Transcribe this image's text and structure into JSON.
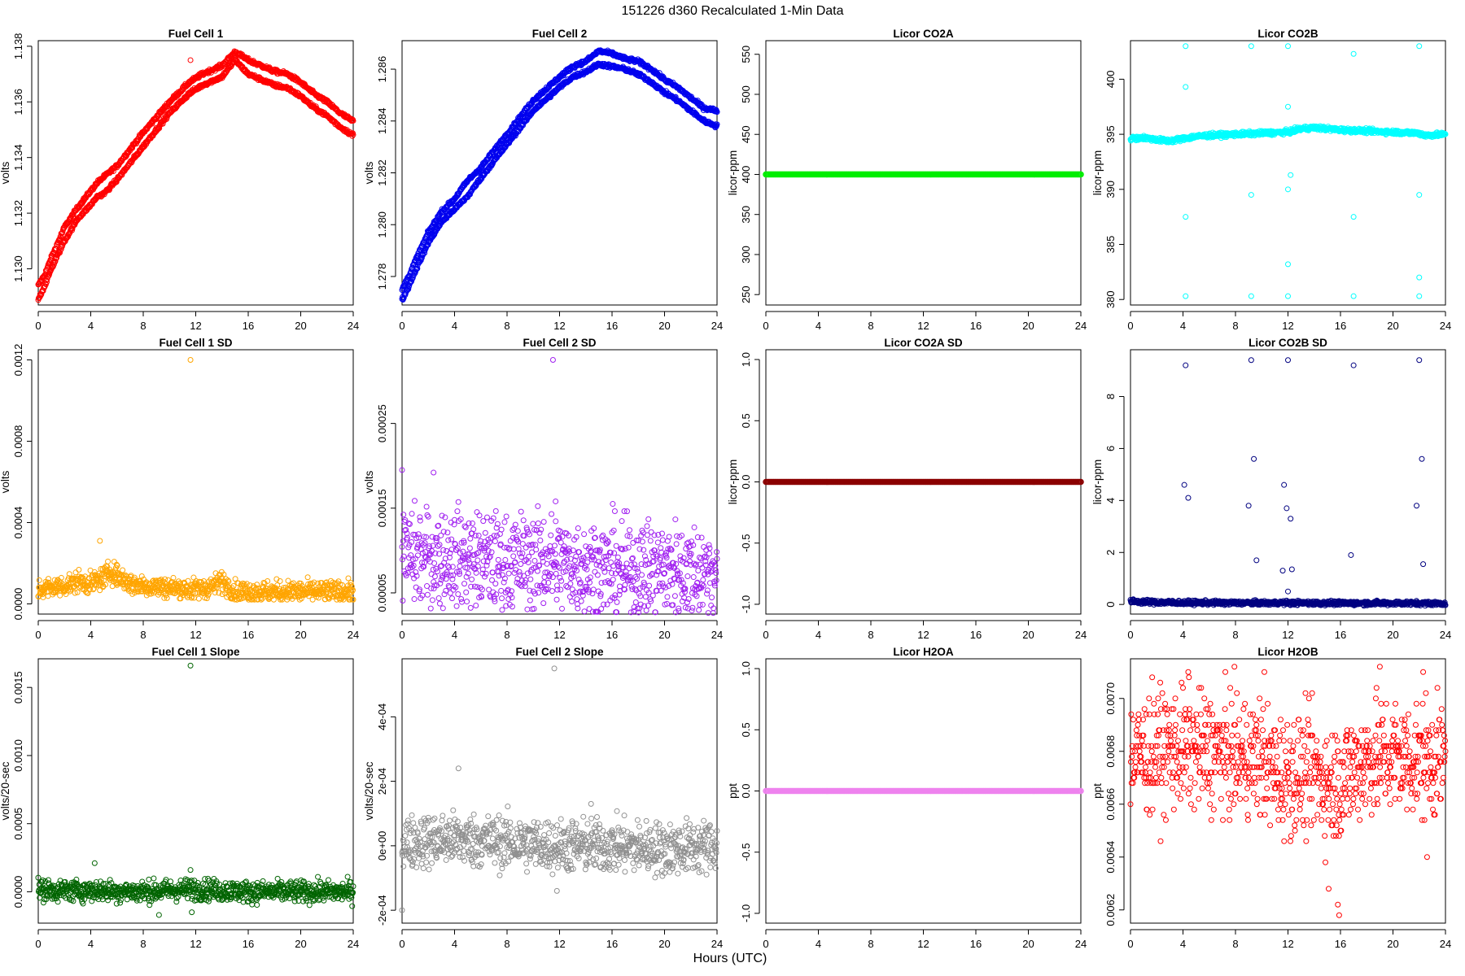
{
  "figure": {
    "title": "151226   d360   Recalculated 1-Min Data",
    "xlabel": "Hours (UTC)"
  },
  "chart_data": [
    {
      "type": "scatter",
      "title": "Fuel Cell 1",
      "ylabel": "volts",
      "color": "#ff0000",
      "xlim": [
        0,
        24
      ],
      "ylim": [
        1.1287,
        1.1382
      ],
      "xticks": [
        0,
        4,
        8,
        12,
        16,
        20,
        24
      ],
      "xtick_labels": [
        "0",
        "4",
        "8",
        "12",
        "16",
        "20",
        "24"
      ],
      "yticks": [
        1.13,
        1.132,
        1.134,
        1.136,
        1.138
      ],
      "ytick_labels": [
        "1.130",
        "1.132",
        "1.134",
        "1.136",
        "1.138"
      ],
      "series": [
        {
          "x": [
            0,
            0.5,
            1,
            2,
            3,
            4,
            4.5,
            5,
            6,
            8,
            10,
            11.5,
            12.5,
            14,
            15,
            16,
            17,
            18,
            19,
            20,
            21,
            22,
            23,
            24
          ],
          "y": [
            1.1294,
            1.1298,
            1.1304,
            1.1315,
            1.1322,
            1.1328,
            1.1331,
            1.1333,
            1.1337,
            1.1349,
            1.136,
            1.1367,
            1.137,
            1.1373,
            1.1378,
            1.1375,
            1.1373,
            1.1371,
            1.137,
            1.1367,
            1.1363,
            1.136,
            1.1356,
            1.1353
          ]
        },
        {
          "x": [
            0,
            0.5,
            1,
            2,
            3,
            4,
            4.5,
            5,
            6,
            8,
            10,
            11.5,
            12.5,
            14,
            15,
            16,
            17,
            18,
            19,
            20,
            21,
            22,
            23,
            24
          ],
          "y": [
            1.1289,
            1.1294,
            1.13,
            1.131,
            1.1318,
            1.1323,
            1.1326,
            1.1327,
            1.1332,
            1.1344,
            1.1356,
            1.1363,
            1.1366,
            1.1369,
            1.1375,
            1.137,
            1.1368,
            1.1366,
            1.1365,
            1.1362,
            1.1358,
            1.1355,
            1.1351,
            1.1348
          ]
        },
        {
          "x": [
            11.6
          ],
          "y": [
            1.1375
          ]
        }
      ]
    },
    {
      "type": "scatter",
      "title": "Fuel Cell 2",
      "ylabel": "volts",
      "color": "#0000ee",
      "xlim": [
        0,
        24
      ],
      "ylim": [
        1.2769,
        1.2871
      ],
      "xticks": [
        0,
        4,
        8,
        12,
        16,
        20,
        24
      ],
      "xtick_labels": [
        "0",
        "4",
        "8",
        "12",
        "16",
        "20",
        "24"
      ],
      "yticks": [
        1.278,
        1.28,
        1.282,
        1.284,
        1.286
      ],
      "ytick_labels": [
        "1.278",
        "1.280",
        "1.282",
        "1.284",
        "1.286"
      ],
      "series": [
        {
          "x": [
            0,
            0.5,
            1,
            2,
            3,
            4,
            5,
            6,
            8,
            10,
            12,
            13,
            14,
            15,
            16,
            17,
            18,
            19,
            20,
            21,
            22,
            23,
            24
          ],
          "y": [
            1.2775,
            1.278,
            1.2786,
            1.2797,
            1.2805,
            1.281,
            1.2817,
            1.2822,
            1.2835,
            1.2848,
            1.2857,
            1.2861,
            1.2863,
            1.2867,
            1.2866,
            1.2864,
            1.2863,
            1.286,
            1.2856,
            1.2853,
            1.2849,
            1.2845,
            1.2844
          ]
        },
        {
          "x": [
            0,
            0.5,
            1,
            2,
            3,
            4,
            5,
            6,
            8,
            10,
            12,
            13,
            14,
            15,
            16,
            17,
            18,
            19,
            20,
            21,
            22,
            23,
            24
          ],
          "y": [
            1.2771,
            1.2776,
            1.2782,
            1.2793,
            1.2801,
            1.2806,
            1.2811,
            1.2818,
            1.2831,
            1.2844,
            1.2853,
            1.2857,
            1.2859,
            1.2862,
            1.2861,
            1.286,
            1.2858,
            1.2855,
            1.2851,
            1.2848,
            1.2844,
            1.284,
            1.2838
          ]
        }
      ]
    },
    {
      "type": "scatter",
      "title": "Licor CO2A",
      "ylabel": "licor-ppm",
      "color": "#00ee00",
      "xlim": [
        0,
        24
      ],
      "ylim": [
        237,
        567
      ],
      "xticks": [
        0,
        4,
        8,
        12,
        16,
        20,
        24
      ],
      "xtick_labels": [
        "0",
        "4",
        "8",
        "12",
        "16",
        "20",
        "24"
      ],
      "yticks": [
        250,
        300,
        350,
        400,
        450,
        500,
        550
      ],
      "ytick_labels": [
        "250",
        "300",
        "350",
        "400",
        "450",
        "500",
        "550"
      ],
      "series": [
        {
          "x": [
            0,
            24
          ],
          "y": [
            400,
            400
          ]
        }
      ]
    },
    {
      "type": "scatter",
      "title": "Licor CO2B",
      "ylabel": "licor-ppm",
      "color": "#00ffff",
      "xlim": [
        0,
        24
      ],
      "ylim": [
        379.5,
        403.5
      ],
      "xticks": [
        0,
        4,
        8,
        12,
        16,
        20,
        24
      ],
      "xtick_labels": [
        "0",
        "4",
        "8",
        "12",
        "16",
        "20",
        "24"
      ],
      "yticks": [
        380,
        385,
        390,
        395,
        400
      ],
      "ytick_labels": [
        "380",
        "385",
        "390",
        "395",
        "400"
      ],
      "series": [
        {
          "x": [
            0,
            1,
            2,
            3,
            4,
            5,
            6,
            8,
            10,
            12,
            13,
            14,
            16,
            18,
            20,
            22,
            22.4,
            24
          ],
          "y": [
            394.6,
            394.7,
            394.5,
            394.4,
            394.6,
            394.8,
            394.9,
            395.0,
            395.1,
            395.2,
            395.5,
            395.6,
            395.4,
            395.3,
            395.2,
            395.1,
            394.9,
            395.0
          ]
        },
        {
          "x": [
            4.2,
            4.2,
            4.2,
            4.2,
            9.2,
            9.2,
            9.2,
            12,
            12,
            12,
            12,
            12,
            12.2,
            17,
            17,
            17,
            22,
            22,
            22,
            22
          ],
          "y": [
            403.0,
            399.3,
            387.5,
            380.3,
            403.0,
            389.5,
            380.3,
            403.0,
            397.5,
            390.0,
            383.2,
            380.3,
            391.3,
            402.3,
            387.5,
            380.3,
            403.0,
            389.5,
            382.0,
            380.3
          ]
        }
      ]
    },
    {
      "type": "scatter",
      "title": "Fuel Cell 1 SD",
      "ylabel": "volts",
      "color": "#ffa500",
      "xlim": [
        0,
        24
      ],
      "ylim": [
        -5e-05,
        0.00125
      ],
      "xticks": [
        0,
        4,
        8,
        12,
        16,
        20,
        24
      ],
      "xtick_labels": [
        "0",
        "4",
        "8",
        "12",
        "16",
        "20",
        "24"
      ],
      "yticks": [
        0,
        0.0004,
        0.0008,
        0.0012
      ],
      "ytick_labels": [
        "0.0000",
        "0.0004",
        "0.0008",
        "0.0012"
      ],
      "series": [
        {
          "x": [
            0,
            1,
            2,
            3,
            4,
            5,
            5.5,
            6,
            7,
            8,
            10,
            12,
            13,
            14,
            15,
            16,
            18,
            20,
            22,
            24
          ],
          "y": [
            7e-05,
            8e-05,
            9e-05,
            0.00011,
            0.0001,
            0.00013,
            0.00016,
            0.00014,
            0.0001,
            9e-05,
            8e-05,
            7e-05,
            8e-05,
            0.00011,
            6e-05,
            6e-05,
            6e-05,
            6e-05,
            6e-05,
            6e-05
          ]
        },
        {
          "x": [
            4.7,
            11.6
          ],
          "y": [
            0.00031,
            0.0012
          ]
        }
      ]
    },
    {
      "type": "scatter",
      "title": "Fuel Cell 2 SD",
      "ylabel": "volts",
      "color": "#a020f0",
      "xlim": [
        0,
        24
      ],
      "ylim": [
        2.5e-05,
        0.000337
      ],
      "xticks": [
        0,
        4,
        8,
        12,
        16,
        20,
        24
      ],
      "xtick_labels": [
        "0",
        "4",
        "8",
        "12",
        "16",
        "20",
        "24"
      ],
      "yticks": [
        5e-05,
        0.00015,
        0.00025
      ],
      "ytick_labels": [
        "0.00005",
        "0.00015",
        "0.00025"
      ],
      "series": [
        {
          "x": [
            0,
            2,
            4,
            6,
            8,
            10,
            12,
            14,
            16,
            18,
            20,
            22,
            24
          ],
          "y": [
            9.5e-05,
            9e-05,
            9.2e-05,
            8.8e-05,
            8.5e-05,
            8.8e-05,
            8.5e-05,
            8e-05,
            7.8e-05,
            7.7e-05,
            7.8e-05,
            7.6e-05,
            7.5e-05
          ]
        },
        {
          "x": [
            0,
            2.4,
            11.5,
            11.7
          ],
          "y": [
            0.000195,
            0.000192,
            0.000325,
            0.000158
          ]
        }
      ]
    },
    {
      "type": "scatter",
      "title": "Licor CO2A SD",
      "ylabel": "licor-ppm",
      "color": "#8b0000",
      "xlim": [
        0,
        24
      ],
      "ylim": [
        -1.08,
        1.08
      ],
      "xticks": [
        0,
        4,
        8,
        12,
        16,
        20,
        24
      ],
      "xtick_labels": [
        "0",
        "4",
        "8",
        "12",
        "16",
        "20",
        "24"
      ],
      "yticks": [
        -1.0,
        -0.5,
        0.0,
        0.5,
        1.0
      ],
      "ytick_labels": [
        "-1.0",
        "-0.5",
        "0.0",
        "0.5",
        "1.0"
      ],
      "series": [
        {
          "x": [
            0,
            24
          ],
          "y": [
            0,
            0
          ]
        }
      ]
    },
    {
      "type": "scatter",
      "title": "Licor CO2B SD",
      "ylabel": "licor-ppm",
      "color": "#000080",
      "xlim": [
        0,
        24
      ],
      "ylim": [
        -0.37,
        9.8
      ],
      "xticks": [
        0,
        4,
        8,
        12,
        16,
        20,
        24
      ],
      "xtick_labels": [
        "0",
        "4",
        "8",
        "12",
        "16",
        "20",
        "24"
      ],
      "yticks": [
        0,
        2,
        4,
        6,
        8
      ],
      "ytick_labels": [
        "0",
        "2",
        "4",
        "6",
        "8"
      ],
      "series": [
        {
          "x": [
            0,
            2,
            4,
            8,
            12,
            16,
            20,
            24
          ],
          "y": [
            0.12,
            0.08,
            0.07,
            0.06,
            0.06,
            0.05,
            0.05,
            0.04
          ]
        },
        {
          "x": [
            4.2,
            4.4,
            9.2,
            9.4,
            12.0,
            9.0,
            11.7,
            11.9,
            12.2,
            16.8,
            17.0,
            22.0,
            22.2,
            21.8,
            4.1,
            9.6,
            11.6,
            12.0,
            12.3,
            22.3
          ],
          "y": [
            9.2,
            4.1,
            9.4,
            5.6,
            9.4,
            3.8,
            4.6,
            3.7,
            3.3,
            1.9,
            9.2,
            9.4,
            5.6,
            3.8,
            4.6,
            1.7,
            1.3,
            0.5,
            1.35,
            1.55
          ]
        }
      ]
    },
    {
      "type": "scatter",
      "title": "Fuel Cell 1 Slope",
      "ylabel": "volts/20-sec",
      "color": "#006400",
      "xlim": [
        0,
        24
      ],
      "ylim": [
        -0.00023,
        0.00171
      ],
      "xticks": [
        0,
        4,
        8,
        12,
        16,
        20,
        24
      ],
      "xtick_labels": [
        "0",
        "4",
        "8",
        "12",
        "16",
        "20",
        "24"
      ],
      "yticks": [
        0,
        0.0005,
        0.001,
        0.0015
      ],
      "ytick_labels": [
        "0.0000",
        "0.0005",
        "0.0010",
        "0.0015"
      ],
      "series": [
        {
          "x": [
            0,
            4,
            8,
            12,
            16,
            20,
            24
          ],
          "y": [
            1e-05,
            1e-05,
            0.0,
            2e-05,
            0.0,
            0.0,
            0.0
          ]
        },
        {
          "x": [
            4.3,
            9.2,
            11.6,
            11.6,
            11.7
          ],
          "y": [
            0.00021,
            -0.00017,
            0.00166,
            0.00016,
            -0.00015
          ]
        }
      ]
    },
    {
      "type": "scatter",
      "title": "Fuel Cell 2 Slope",
      "ylabel": "volts/20-sec",
      "color": "#909090",
      "xlim": [
        0,
        24
      ],
      "ylim": [
        -0.00024,
        0.00058
      ],
      "xticks": [
        0,
        4,
        8,
        12,
        16,
        20,
        24
      ],
      "xtick_labels": [
        "0",
        "4",
        "8",
        "12",
        "16",
        "20",
        "24"
      ],
      "yticks": [
        -0.0002,
        0,
        0.0002,
        0.0004
      ],
      "ytick_labels": [
        "-2e-04",
        "0e+00",
        "2e-04",
        "4e-04"
      ],
      "series": [
        {
          "x": [
            0,
            4,
            8,
            12,
            16,
            20,
            24
          ],
          "y": [
            1e-05,
            2e-05,
            1e-05,
            0.0,
            0.0,
            -1e-05,
            0.0
          ]
        },
        {
          "x": [
            0,
            4.3,
            11.6,
            14.4,
            11.8
          ],
          "y": [
            -0.0002,
            0.00024,
            0.00055,
            0.00013,
            -0.00014
          ]
        }
      ]
    },
    {
      "type": "scatter",
      "title": "Licor H2OA",
      "ylabel": "ppt",
      "color": "#ee82ee",
      "xlim": [
        0,
        24
      ],
      "ylim": [
        -1.08,
        1.08
      ],
      "xticks": [
        0,
        4,
        8,
        12,
        16,
        20,
        24
      ],
      "xtick_labels": [
        "0",
        "4",
        "8",
        "12",
        "16",
        "20",
        "24"
      ],
      "yticks": [
        -1.0,
        -0.5,
        0.0,
        0.5,
        1.0
      ],
      "ytick_labels": [
        "-1.0",
        "-0.5",
        "0.0",
        "0.5",
        "1.0"
      ],
      "series": [
        {
          "x": [
            0,
            24
          ],
          "y": [
            0,
            0
          ]
        }
      ]
    },
    {
      "type": "scatter",
      "title": "Licor H2OB",
      "ylabel": "ppt",
      "color": "#ff0000",
      "xlim": [
        0,
        24
      ],
      "ylim": [
        0.00615,
        0.00715
      ],
      "xticks": [
        0,
        4,
        8,
        12,
        16,
        20,
        24
      ],
      "xtick_labels": [
        "0",
        "4",
        "8",
        "12",
        "16",
        "20",
        "24"
      ],
      "yticks": [
        0.0062,
        0.0064,
        0.0066,
        0.0068,
        0.007
      ],
      "ytick_labels": [
        "0.0062",
        "0.0064",
        "0.0066",
        "0.0068",
        "0.0070"
      ],
      "series": [
        {
          "x": [
            0,
            2,
            4,
            6,
            8,
            10,
            11,
            12,
            14,
            15,
            16,
            18,
            20,
            22,
            24
          ],
          "y": [
            0.00678,
            0.0068,
            0.00681,
            0.0068,
            0.00678,
            0.00677,
            0.00672,
            0.00671,
            0.00672,
            0.00667,
            0.00669,
            0.00677,
            0.00678,
            0.00677,
            0.00676
          ]
        },
        {
          "x": [
            4.4,
            10.2,
            15.9,
            15.8,
            15.1,
            19.0,
            22.3,
            22.6
          ],
          "y": [
            0.0071,
            0.0071,
            0.00618,
            0.00622,
            0.00628,
            0.00712,
            0.0071,
            0.0064
          ]
        }
      ]
    }
  ]
}
